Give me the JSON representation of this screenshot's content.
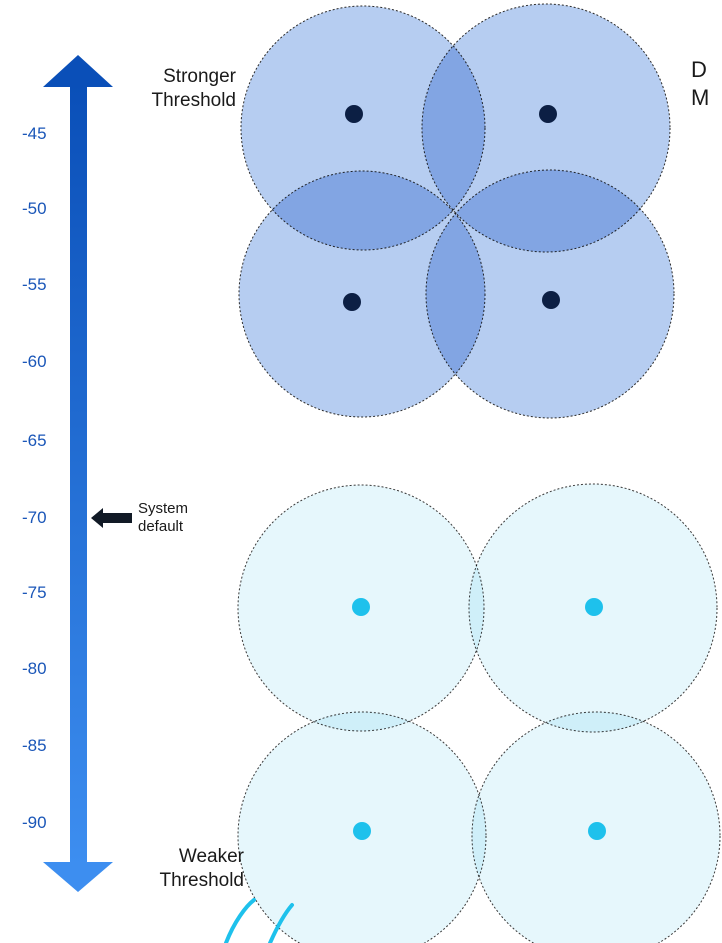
{
  "scale": {
    "ticks": [
      "-45",
      "-50",
      "-55",
      "-60",
      "-65",
      "-70",
      "-75",
      "-80",
      "-85",
      "-90"
    ],
    "top_label_line1": "Stronger",
    "top_label_line2": "Threshold",
    "bottom_label_line1": "Weaker",
    "bottom_label_line2": "Threshold",
    "default_label_line1": "System",
    "default_label_line2": "default"
  },
  "right_text": {
    "line1": "D",
    "line2": "M"
  },
  "colors": {
    "arrow_dark": "#0a4fb8",
    "arrow_light": "#3d8ef0",
    "strong_cell_fill": "#a9c4ef",
    "strong_cell_dot": "#0c1f44",
    "weak_cell_fill": "#e3f6fc",
    "weak_cell_dot": "#1ec1ec",
    "pointer": "#111a26",
    "tick_text": "#1a56b8",
    "scribble": "#1ec1ec"
  },
  "icons": {
    "pointer": "arrow-left-icon"
  }
}
